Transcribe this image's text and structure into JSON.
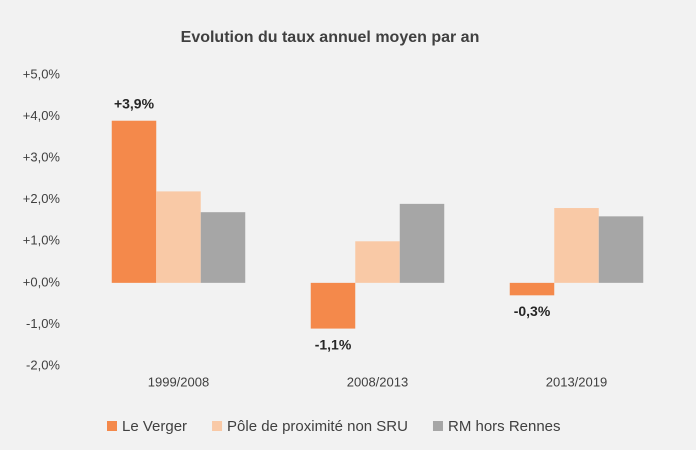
{
  "chart_data": {
    "type": "bar",
    "title": "Evolution du taux annuel moyen par an",
    "categories": [
      "1999/2008",
      "2008/2013",
      "2013/2019"
    ],
    "series": [
      {
        "name": "Le Verger",
        "color": "#f4894b",
        "values": [
          3.9,
          -1.1,
          -0.3
        ],
        "value_labels": [
          "+3,9%",
          "-1,1%",
          "-0,3%"
        ]
      },
      {
        "name": "Pôle de proximité non SRU",
        "color": "#f9c9a6",
        "values": [
          2.2,
          1.0,
          1.8
        ]
      },
      {
        "name": "RM hors Rennes",
        "color": "#a6a6a6",
        "values": [
          1.7,
          1.9,
          1.6
        ]
      }
    ],
    "ylim": [
      -2,
      5
    ],
    "yticks": [
      {
        "value": 5,
        "label": "+5,0%"
      },
      {
        "value": 4,
        "label": "+4,0%"
      },
      {
        "value": 3,
        "label": "+3,0%"
      },
      {
        "value": 2,
        "label": "+2,0%"
      },
      {
        "value": 1,
        "label": "+1,0%"
      },
      {
        "value": 0,
        "label": "+0,0%"
      },
      {
        "value": -1,
        "label": "-1,0%"
      },
      {
        "value": -2,
        "label": "-2,0%"
      }
    ],
    "grid": false,
    "legend": "bottom"
  }
}
